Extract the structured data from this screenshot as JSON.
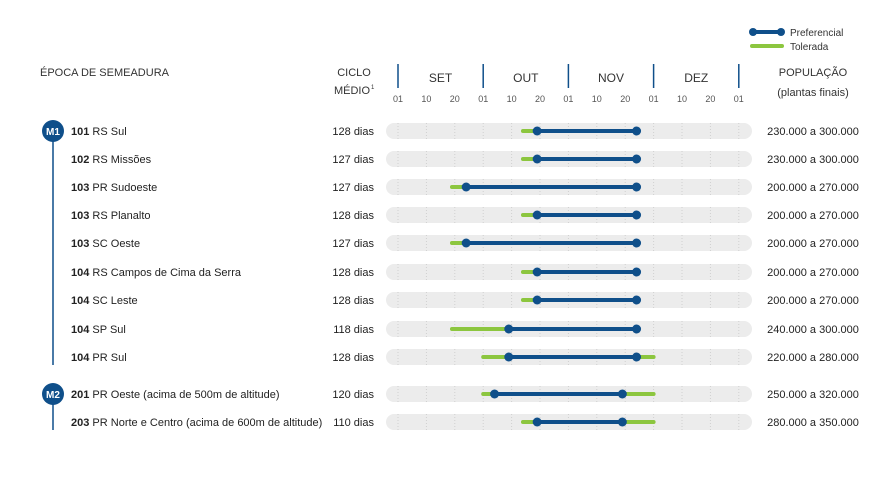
{
  "legend": {
    "preferred_label": "Preferencial",
    "tolerated_label": "Tolerada"
  },
  "headers": {
    "epoca": "ÉPOCA DE SEMEADURA",
    "ciclo_line1": "CICLO",
    "ciclo_line2": "MÉDIO",
    "ciclo_sup": "1",
    "populacao_line1": "POPULAÇÃO",
    "populacao_line2": "(plantas finais)"
  },
  "months": [
    "SET",
    "OUT",
    "NOV",
    "DEZ"
  ],
  "day_ticks": [
    "01",
    "10",
    "20",
    "01",
    "10",
    "20",
    "01",
    "10",
    "20",
    "01",
    "10",
    "20",
    "01"
  ],
  "colors": {
    "preferred": "#0f4f8a",
    "tolerated": "#8cc63f",
    "track": "#ececec",
    "group_badge": "#0f4f8a"
  },
  "groups": [
    {
      "label": "M1",
      "first_row": 0,
      "last_row": 8
    },
    {
      "label": "M2",
      "first_row": 9,
      "last_row": 10
    }
  ],
  "chart_data": {
    "type": "gantt",
    "x_unit": "sowing date (day of month)",
    "x_range": [
      "01 SET",
      "01 JAN"
    ],
    "rows": [
      {
        "code": "101",
        "region": "RS Sul",
        "cycle": "128 dias",
        "population": "230.000 a 300.000",
        "tolerated": [
          "15 OUT",
          "15 NOV"
        ],
        "preferred": [
          "20 OUT",
          "25 NOV"
        ]
      },
      {
        "code": "102",
        "region": "RS Missões",
        "cycle": "127 dias",
        "population": "230.000 a 300.000",
        "tolerated": [
          "15 OUT",
          "15 NOV"
        ],
        "preferred": [
          "20 OUT",
          "25 NOV"
        ]
      },
      {
        "code": "103",
        "region": "PR Sudoeste",
        "cycle": "127 dias",
        "population": "200.000 a 270.000",
        "tolerated": [
          "20 SET",
          "15 NOV"
        ],
        "preferred": [
          "25 SET",
          "25 NOV"
        ]
      },
      {
        "code": "103",
        "region": "RS Planalto",
        "cycle": "128 dias",
        "population": "200.000 a 270.000",
        "tolerated": [
          "15 OUT",
          "15 NOV"
        ],
        "preferred": [
          "20 OUT",
          "25 NOV"
        ]
      },
      {
        "code": "103",
        "region": "SC Oeste",
        "cycle": "127 dias",
        "population": "200.000 a 270.000",
        "tolerated": [
          "20 SET",
          "15 NOV"
        ],
        "preferred": [
          "25 SET",
          "25 NOV"
        ]
      },
      {
        "code": "104",
        "region": "RS Campos de Cima da Serra",
        "cycle": "128 dias",
        "population": "200.000 a 270.000",
        "tolerated": [
          "15 OUT",
          "15 NOV"
        ],
        "preferred": [
          "20 OUT",
          "25 NOV"
        ]
      },
      {
        "code": "104",
        "region": "SC Leste",
        "cycle": "128 dias",
        "population": "200.000 a 270.000",
        "tolerated": [
          "15 OUT",
          "15 NOV"
        ],
        "preferred": [
          "20 OUT",
          "25 NOV"
        ]
      },
      {
        "code": "104",
        "region": "SP Sul",
        "cycle": "118 dias",
        "population": "240.000 a 300.000",
        "tolerated": [
          "20 SET",
          "15 NOV"
        ],
        "preferred": [
          "10 OUT",
          "25 NOV"
        ]
      },
      {
        "code": "104",
        "region": "PR Sul",
        "cycle": "128 dias",
        "population": "220.000 a 280.000",
        "tolerated": [
          "01 OUT",
          "01 DEZ"
        ],
        "preferred": [
          "10 OUT",
          "25 NOV"
        ]
      },
      {
        "code": "201",
        "region": "PR Oeste (acima de 500m de altitude)",
        "cycle": "120 dias",
        "population": "250.000 a 320.000",
        "tolerated": [
          "01 OUT",
          "01 DEZ"
        ],
        "preferred": [
          "05 OUT",
          "20 NOV"
        ]
      },
      {
        "code": "203",
        "region": "PR Norte e Centro (acima de 600m de altitude)",
        "cycle": "110 dias",
        "population": "280.000 a 350.000",
        "tolerated": [
          "15 OUT",
          "01 DEZ"
        ],
        "preferred": [
          "20 OUT",
          "20 NOV"
        ]
      }
    ]
  }
}
